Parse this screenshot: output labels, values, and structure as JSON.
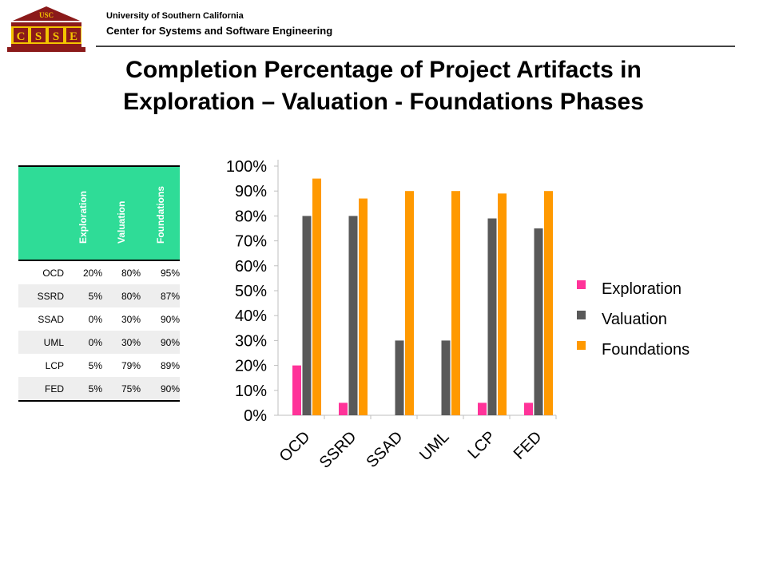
{
  "header": {
    "logo_text_top": "USC",
    "logo_letters": [
      "C",
      "S",
      "S",
      "E"
    ],
    "university": "University of Southern California",
    "center": "Center for Systems and Software Engineering",
    "title_line1": "Completion Percentage of Project Artifacts in",
    "title_line2": "Exploration – Valuation - Foundations Phases"
  },
  "table": {
    "headers": [
      "",
      "Exploration",
      "Valuation",
      "Foundations"
    ],
    "rows": [
      [
        "OCD",
        "20%",
        "80%",
        "95%"
      ],
      [
        "SSRD",
        "5%",
        "80%",
        "87%"
      ],
      [
        "SSAD",
        "0%",
        "30%",
        "90%"
      ],
      [
        "UML",
        "0%",
        "30%",
        "90%"
      ],
      [
        "LCP",
        "5%",
        "79%",
        "89%"
      ],
      [
        "FED",
        "5%",
        "75%",
        "90%"
      ]
    ]
  },
  "colors": {
    "exploration": "#ff3399",
    "valuation": "#595959",
    "foundations": "#ff9900",
    "table_header": "#2fdc97",
    "logo_maroon": "#8b1a1a",
    "logo_gold": "#f2c400"
  },
  "chart_data": {
    "type": "bar",
    "categories": [
      "OCD",
      "SSRD",
      "SSAD",
      "UML",
      "LCP",
      "FED"
    ],
    "series": [
      {
        "name": "Exploration",
        "values": [
          20,
          5,
          0,
          0,
          5,
          5
        ]
      },
      {
        "name": "Valuation",
        "values": [
          80,
          80,
          30,
          30,
          79,
          75
        ]
      },
      {
        "name": "Foundations",
        "values": [
          95,
          87,
          90,
          90,
          89,
          90
        ]
      }
    ],
    "ylim": [
      0,
      100
    ],
    "ytick_labels": [
      "0%",
      "10%",
      "20%",
      "30%",
      "40%",
      "50%",
      "60%",
      "70%",
      "80%",
      "90%",
      "100%"
    ],
    "legend_position": "right",
    "grid": false
  }
}
